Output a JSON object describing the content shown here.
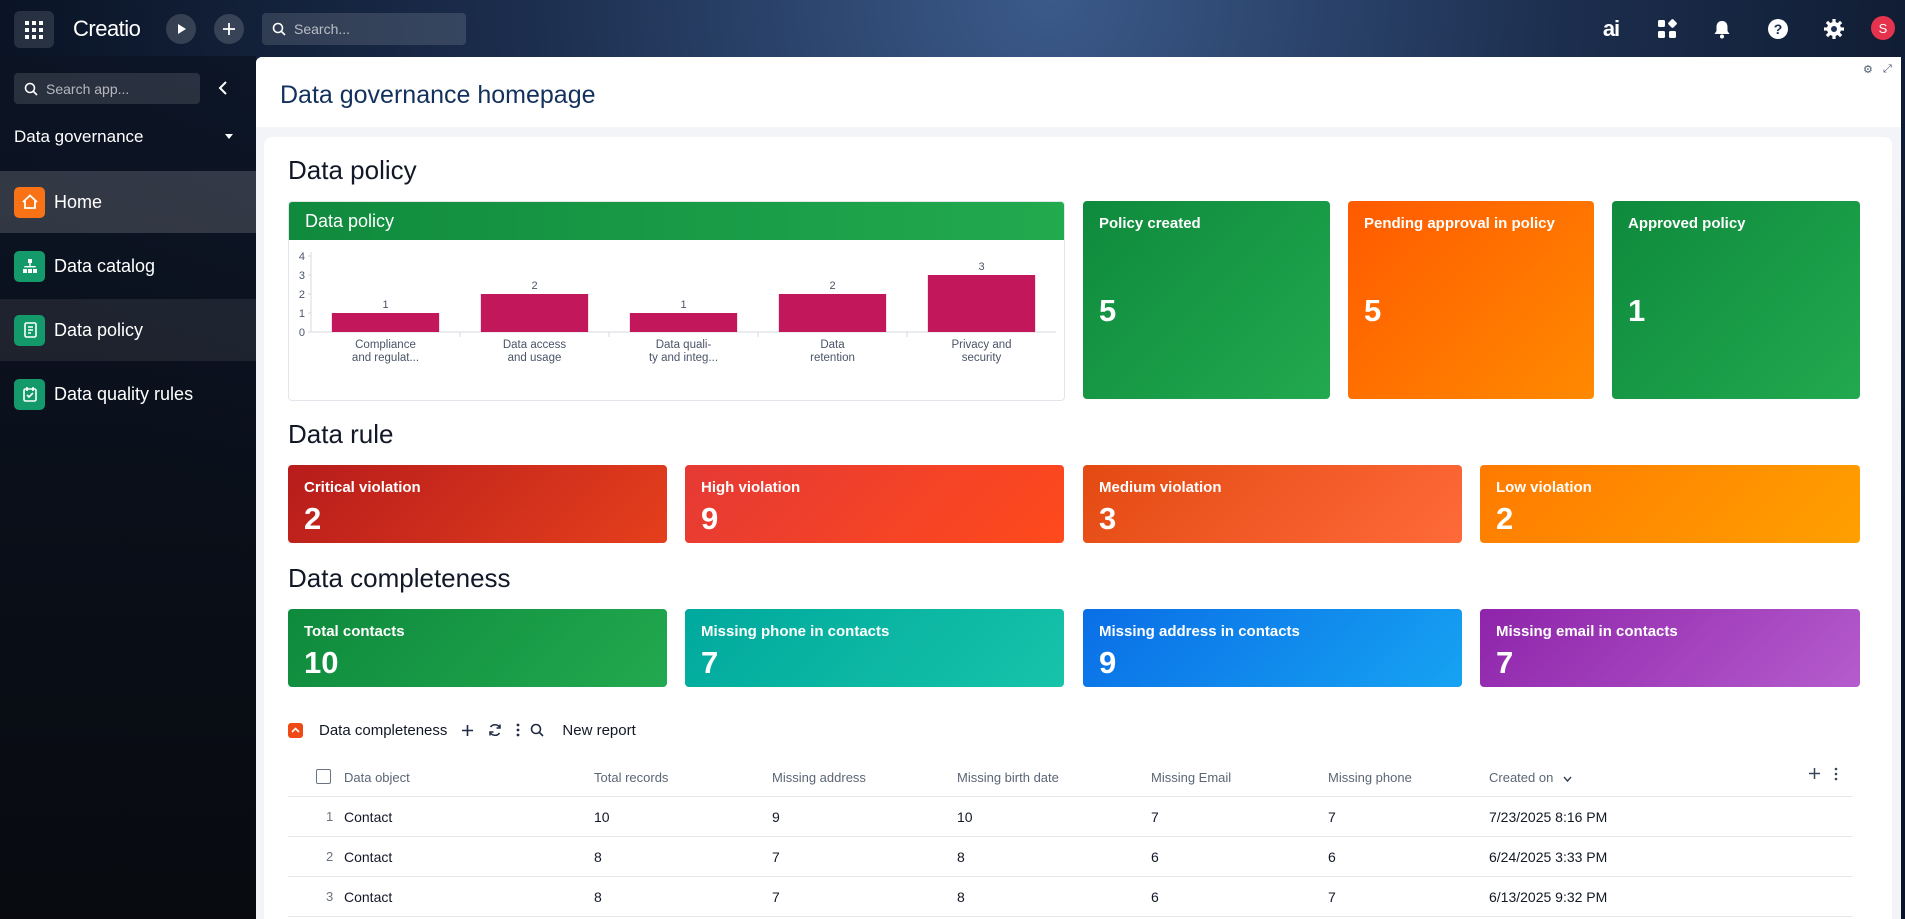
{
  "topbar": {
    "logo": "Creatio",
    "search_placeholder": "Search...",
    "avatar_letter": "S"
  },
  "sidebar": {
    "search_placeholder": "Search app...",
    "workspace": "Data governance",
    "items": [
      {
        "label": "Home",
        "icon": "home-icon",
        "color": "#f97316"
      },
      {
        "label": "Data catalog",
        "icon": "catalog-icon",
        "color": "#14996b"
      },
      {
        "label": "Data policy",
        "icon": "policy-icon",
        "color": "#14996b"
      },
      {
        "label": "Data quality rules",
        "icon": "rules-icon",
        "color": "#14996b"
      }
    ]
  },
  "page": {
    "title": "Data governance homepage"
  },
  "sections": {
    "policy": "Data policy",
    "rule": "Data rule",
    "completeness": "Data completeness"
  },
  "chart_data": {
    "type": "bar",
    "title": "Data policy",
    "categories": [
      "Compliance and regulat...",
      "Data access and usage",
      "Data quali- ty and integ...",
      "Data retention",
      "Privacy and security"
    ],
    "category_lines": [
      [
        "Compliance",
        "and regulat..."
      ],
      [
        "Data access",
        "and usage"
      ],
      [
        "Data quali-",
        "ty and integ..."
      ],
      [
        "Data",
        "retention"
      ],
      [
        "Privacy and",
        "security"
      ]
    ],
    "values": [
      1,
      2,
      1,
      2,
      3
    ],
    "value_labels": [
      "1",
      "2",
      "1",
      "2",
      "3"
    ],
    "ylim": [
      0,
      4
    ],
    "yticks": [
      "0",
      "1",
      "2",
      "3",
      "4"
    ],
    "color": "#c2185b",
    "grid": false
  },
  "policy_widgets": [
    {
      "label": "Policy created",
      "value": "5",
      "colors": [
        "#0e8a3c",
        "#22a94f"
      ]
    },
    {
      "label": "Pending approval in policy",
      "value": "5",
      "colors": [
        "#ff5a00",
        "#ff8a00"
      ]
    },
    {
      "label": "Approved policy",
      "value": "1",
      "colors": [
        "#0e8a3c",
        "#22a94f"
      ]
    }
  ],
  "rule_widgets": [
    {
      "label": "Critical violation",
      "value": "2",
      "colors": [
        "#b71c1c",
        "#e53f1c"
      ]
    },
    {
      "label": "High violation",
      "value": "9",
      "colors": [
        "#e53935",
        "#ff4a1c"
      ]
    },
    {
      "label": "Medium violation",
      "value": "3",
      "colors": [
        "#e34a12",
        "#ff6a3a"
      ]
    },
    {
      "label": "Low violation",
      "value": "2",
      "colors": [
        "#ff7a00",
        "#ffa000"
      ]
    }
  ],
  "completeness_widgets": [
    {
      "label": "Total contacts",
      "value": "10",
      "colors": [
        "#0e8a3c",
        "#22a94f"
      ]
    },
    {
      "label": "Missing phone in contacts",
      "value": "7",
      "colors": [
        "#00a99d",
        "#17c3a9"
      ]
    },
    {
      "label": "Missing address in contacts",
      "value": "9",
      "colors": [
        "#0a6ee6",
        "#16a3f2"
      ]
    },
    {
      "label": "Missing email in contacts",
      "value": "7",
      "colors": [
        "#8e24aa",
        "#b55ccd"
      ]
    }
  ],
  "table": {
    "title": "Data completeness",
    "new_report": "New report",
    "columns": [
      "Data object",
      "Total records",
      "Missing address",
      "Missing birth date",
      "Missing Email",
      "Missing phone",
      "Created on"
    ],
    "rows": [
      {
        "n": "1",
        "cells": [
          "Contact",
          "10",
          "9",
          "10",
          "7",
          "7",
          "7/23/2025 8:16 PM"
        ]
      },
      {
        "n": "2",
        "cells": [
          "Contact",
          "8",
          "7",
          "8",
          "6",
          "6",
          "6/24/2025 3:33 PM"
        ]
      },
      {
        "n": "3",
        "cells": [
          "Contact",
          "8",
          "7",
          "8",
          "6",
          "7",
          "6/13/2025 9:32 PM"
        ]
      }
    ]
  }
}
